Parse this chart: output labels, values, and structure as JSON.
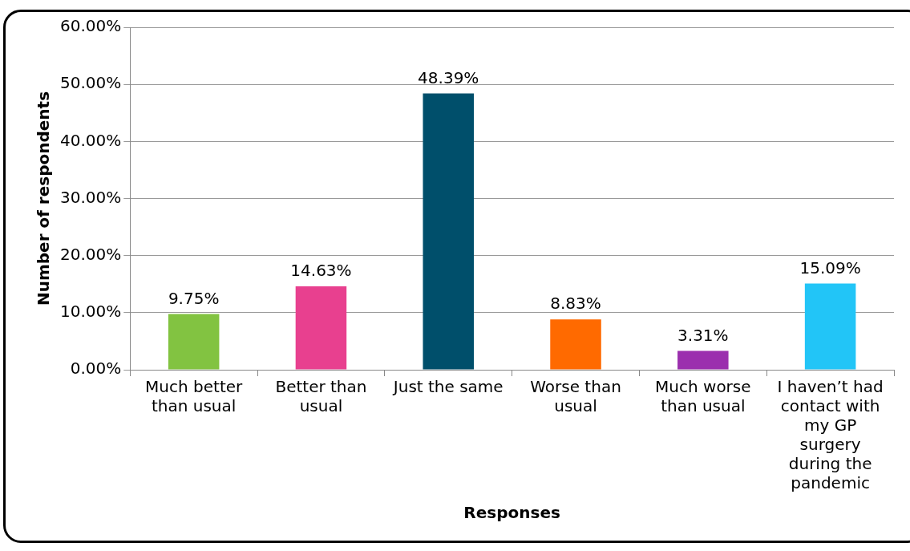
{
  "chart_data": {
    "type": "bar",
    "categories": [
      "Much better than usual",
      "Better than usual",
      "Just the same",
      "Worse than usual",
      "Much worse than usual",
      "I haven’t had contact with my GP surgery during the pandemic"
    ],
    "values": [
      9.75,
      14.63,
      48.39,
      8.83,
      3.31,
      15.09
    ],
    "colors": [
      "#82c341",
      "#e8408f",
      "#004f6b",
      "#ff6a00",
      "#9b2fae",
      "#22c5f7"
    ],
    "value_labels": [
      "9.75%",
      "14.63%",
      "48.39%",
      "8.83%",
      "3.31%",
      "15.09%"
    ],
    "xlabel": "Responses",
    "ylabel": "Number of respondents",
    "ylim": [
      0,
      60
    ],
    "yticks": [
      {
        "value": 0,
        "label": "0.00%"
      },
      {
        "value": 10,
        "label": "10.00%"
      },
      {
        "value": 20,
        "label": "20.00%"
      },
      {
        "value": 30,
        "label": "30.00%"
      },
      {
        "value": 40,
        "label": "40.00%"
      },
      {
        "value": 50,
        "label": "50.00%"
      },
      {
        "value": 60,
        "label": "60.00%"
      }
    ],
    "grid": "y",
    "legend": false
  }
}
